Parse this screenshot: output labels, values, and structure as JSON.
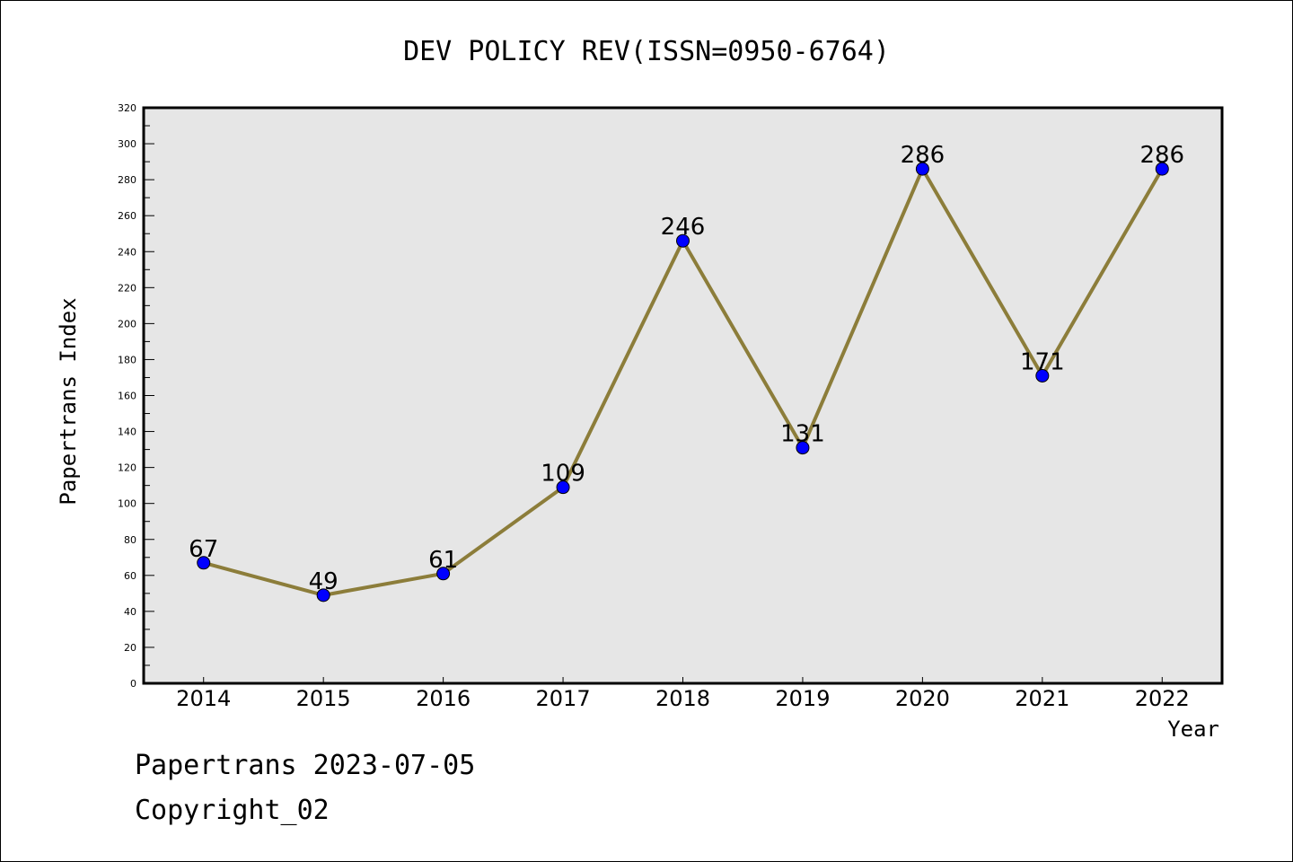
{
  "chart_data": {
    "type": "line",
    "title": "DEV POLICY REV(ISSN=0950-6764)",
    "xlabel": "Year",
    "ylabel": "Papertrans Index",
    "categories": [
      "2014",
      "2015",
      "2016",
      "2017",
      "2018",
      "2019",
      "2020",
      "2021",
      "2022"
    ],
    "values": [
      67,
      49,
      61,
      109,
      246,
      131,
      286,
      171,
      286
    ],
    "ylim": [
      0,
      320
    ],
    "ytick_step": 20,
    "ytick_minor_step": 10,
    "grid": false,
    "background_color": "#e6e6e6",
    "line_color": "#8c7d3a",
    "marker_color": "#0000ff",
    "data_labels": true
  },
  "footer": {
    "line1": "Papertrans 2023-07-05",
    "line2": "Copyright_02"
  }
}
